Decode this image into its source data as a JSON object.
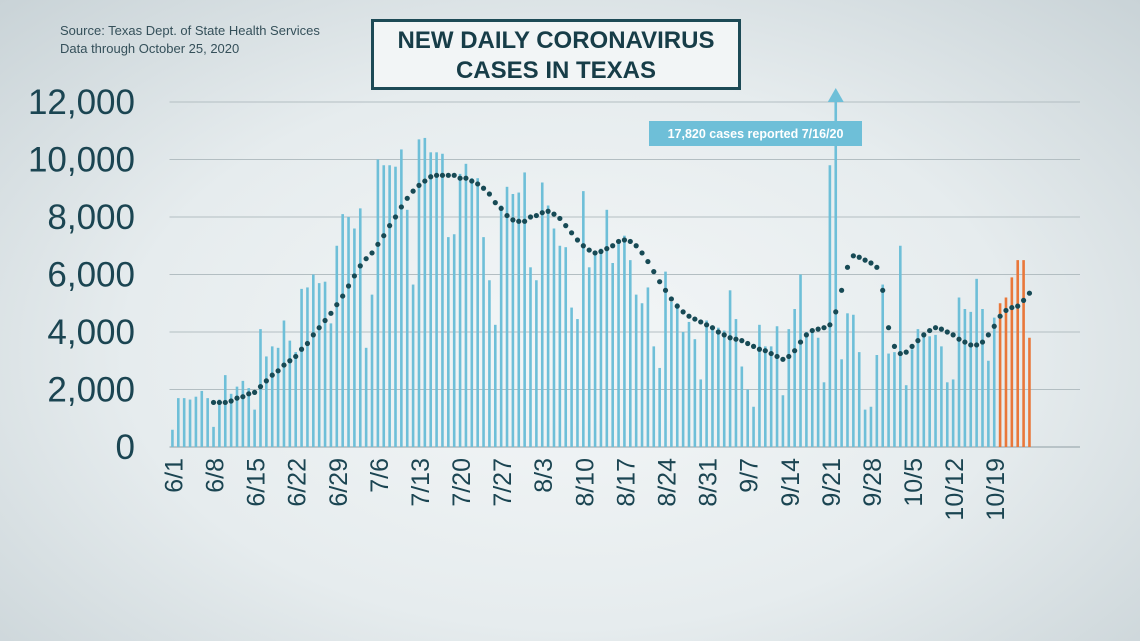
{
  "source": {
    "line1": "Source: Texas Dept. of State Health Services",
    "line2": "Data through October 25, 2020"
  },
  "title": {
    "line1": "NEW DAILY CORONAVIRUS",
    "line2": "CASES IN TEXAS"
  },
  "colors": {
    "bar": "#6ebfd8",
    "bar_highlight": "#e9773a",
    "trend": "#174a55",
    "annotation_bg": "#6ebfd8",
    "annotation_text": "#ffffff",
    "axis_text": "#1b4552",
    "grid": "#b3bec2"
  },
  "chart_data": {
    "type": "bar",
    "y_ticks": [
      "0",
      "2,000",
      "4,000",
      "6,000",
      "8,000",
      "10,000",
      "12,000"
    ],
    "x_ticks": [
      "6/1",
      "6/8",
      "6/15",
      "6/22",
      "6/29",
      "7/6",
      "7/13",
      "7/20",
      "7/27",
      "8/3",
      "8/10",
      "8/17",
      "8/24",
      "8/31",
      "9/7",
      "9/14",
      "9/21",
      "9/28",
      "10/5",
      "10/12",
      "10/19"
    ],
    "ylim": [
      0,
      12000
    ],
    "grid": true,
    "annotation": {
      "text": "17,820 cases reported 7/16/20",
      "value": 17820
    },
    "daily_cases": [
      600,
      1700,
      1700,
      1650,
      1750,
      1950,
      1700,
      700,
      1650,
      2500,
      1850,
      2100,
      2300,
      2050,
      1300,
      4100,
      3150,
      3500,
      3450,
      4400,
      3700,
      3300,
      5500,
      5550,
      6000,
      5700,
      5750,
      4300,
      7000,
      8100,
      8000,
      7600,
      8300,
      3450,
      5300,
      10000,
      9800,
      9800,
      9750,
      10350,
      8250,
      5650,
      10700,
      10750,
      10250,
      10250,
      10200,
      7300,
      7400,
      9500,
      9850,
      9350,
      9350,
      7300,
      5800,
      4250,
      8400,
      9050,
      8800,
      8850,
      9550,
      6250,
      5800,
      9200,
      8400,
      7600,
      7000,
      6950,
      4850,
      4450,
      8900,
      6250,
      6700,
      6900,
      8250,
      6400,
      7150,
      7350,
      6500,
      5300,
      5000,
      5550,
      3500,
      2750,
      6100,
      5050,
      5000,
      4000,
      4350,
      3750,
      2350,
      4400,
      4200,
      4150,
      4050,
      5450,
      4450,
      2800,
      2000,
      1400,
      4250,
      3500,
      3500,
      4200,
      1800,
      4100,
      4800,
      6000,
      4000,
      4100,
      3800,
      2250,
      9800,
      17820,
      3050,
      4650,
      4600,
      3300,
      1300,
      1400,
      3200,
      5650,
      3250,
      3300,
      7000,
      2150,
      3400,
      4100,
      3900,
      3850,
      3900,
      3500,
      2250,
      2350,
      5200,
      4800,
      4700,
      5850,
      4800,
      3000,
      4500,
      5000,
      5200,
      5900,
      6500,
      6500,
      3800
    ],
    "highlight_from_index": 141,
    "moving_average": [
      null,
      null,
      null,
      null,
      null,
      null,
      null,
      1550,
      1550,
      1550,
      1600,
      1700,
      1750,
      1850,
      1900,
      2100,
      2300,
      2500,
      2650,
      2850,
      3000,
      3150,
      3400,
      3600,
      3900,
      4150,
      4400,
      4650,
      4950,
      5250,
      5600,
      5950,
      6300,
      6550,
      6750,
      7050,
      7350,
      7700,
      8000,
      8350,
      8650,
      8900,
      9100,
      9250,
      9400,
      9450,
      9450,
      9450,
      9450,
      9350,
      9350,
      9250,
      9150,
      9000,
      8800,
      8500,
      8300,
      8050,
      7900,
      7850,
      7850,
      8000,
      8050,
      8150,
      8200,
      8100,
      7950,
      7700,
      7450,
      7200,
      7000,
      6850,
      6750,
      6800,
      6900,
      7000,
      7150,
      7200,
      7150,
      7000,
      6750,
      6450,
      6100,
      5750,
      5450,
      5150,
      4900,
      4700,
      4550,
      4450,
      4350,
      4250,
      4150,
      4000,
      3900,
      3800,
      3750,
      3700,
      3600,
      3500,
      3400,
      3350,
      3250,
      3150,
      3050,
      3150,
      3350,
      3650,
      3900,
      4050,
      4100,
      4150,
      4250,
      4700,
      5450,
      6250,
      6650,
      6600,
      6500,
      6400,
      6250,
      5450,
      4150,
      3500,
      3250,
      3300,
      3500,
      3700,
      3900,
      4050,
      4150,
      4100,
      4000,
      3900,
      3750,
      3650,
      3550,
      3550,
      3650,
      3900,
      4200,
      4550,
      4750,
      4850,
      4900,
      5100,
      5350
    ]
  }
}
